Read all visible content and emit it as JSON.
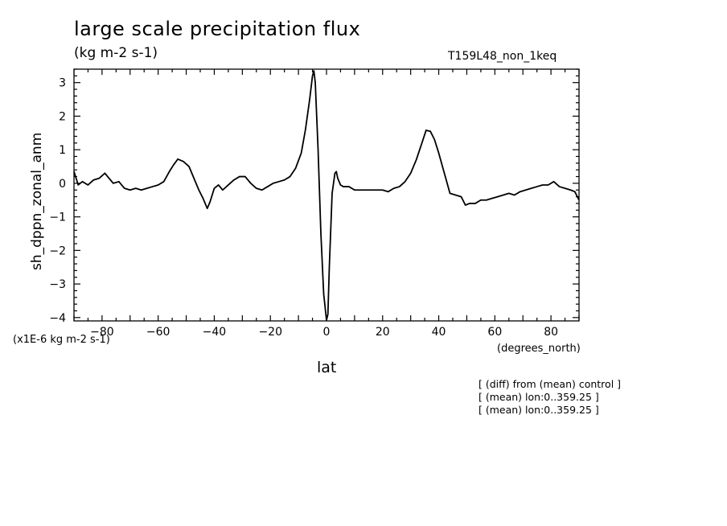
{
  "header": {
    "title": "large scale precipitation flux",
    "units": "(kg m-2 s-1)",
    "experiment": "T159L48_non_1keq"
  },
  "footer": {
    "scale_note": "(x1E-6 kg m-2 s-1)",
    "x_units": "(degrees_north)",
    "notes": [
      "[ (diff) from (mean) control ]",
      "[ (mean) lon:0..359.25 ]",
      "[ (mean) lon:0..359.25 ]"
    ]
  },
  "chart_data": {
    "type": "line",
    "xlabel": "lat",
    "ylabel": "sh_dppn_zonal_anm",
    "xlim": [
      -90,
      90
    ],
    "ylim": [
      -4.1,
      3.4
    ],
    "xticks": [
      -80,
      -60,
      -40,
      -20,
      0,
      20,
      40,
      60,
      80
    ],
    "yticks": [
      -4,
      -3,
      -2,
      -1,
      0,
      1,
      2,
      3
    ],
    "line_color": "#000000",
    "series": [
      {
        "x": [
          -90,
          -88.5,
          -87,
          -85,
          -83,
          -81,
          -79,
          -78,
          -76,
          -74,
          -72,
          -70,
          -68,
          -66,
          -64,
          -62,
          -60,
          -58,
          -56,
          -54.5,
          -53,
          -51,
          -49,
          -47,
          -45.5,
          -44,
          -42.5,
          -41.5,
          -40,
          -38.5,
          -37,
          -35,
          -33,
          -31,
          -29,
          -27,
          -25,
          -23,
          -21,
          -19,
          -17,
          -15,
          -13,
          -11,
          -9,
          -7.5,
          -6,
          -5,
          -4.5,
          -4,
          -3,
          -2,
          -1,
          0,
          0.5,
          1,
          2,
          3,
          3.5,
          4,
          5,
          6,
          8,
          10,
          12,
          14,
          16,
          18,
          20,
          22,
          24,
          26,
          28,
          30,
          32,
          34,
          35.5,
          37,
          38.5,
          40,
          42,
          44,
          46,
          48,
          49.5,
          51,
          53,
          55,
          57,
          59,
          61,
          63,
          65,
          67,
          69,
          71,
          73,
          75,
          77,
          79,
          81,
          83,
          85,
          87,
          88.5,
          90
        ],
        "y": [
          0.35,
          -0.05,
          0.05,
          -0.05,
          0.1,
          0.15,
          0.3,
          0.2,
          0.0,
          0.05,
          -0.15,
          -0.2,
          -0.15,
          -0.2,
          -0.15,
          -0.1,
          -0.05,
          0.05,
          0.35,
          0.55,
          0.72,
          0.65,
          0.5,
          0.1,
          -0.2,
          -0.45,
          -0.75,
          -0.55,
          -0.15,
          -0.05,
          -0.2,
          -0.05,
          0.1,
          0.2,
          0.2,
          0.0,
          -0.15,
          -0.2,
          -0.1,
          0.0,
          0.05,
          0.1,
          0.2,
          0.45,
          0.9,
          1.6,
          2.5,
          3.2,
          3.35,
          3.0,
          1.0,
          -1.5,
          -3.3,
          -4.08,
          -3.9,
          -2.5,
          -0.3,
          0.3,
          0.35,
          0.15,
          -0.05,
          -0.1,
          -0.1,
          -0.2,
          -0.2,
          -0.2,
          -0.2,
          -0.2,
          -0.2,
          -0.25,
          -0.15,
          -0.1,
          0.05,
          0.3,
          0.7,
          1.2,
          1.58,
          1.55,
          1.3,
          0.9,
          0.3,
          -0.3,
          -0.35,
          -0.4,
          -0.65,
          -0.6,
          -0.6,
          -0.5,
          -0.5,
          -0.45,
          -0.4,
          -0.35,
          -0.3,
          -0.35,
          -0.25,
          -0.2,
          -0.15,
          -0.1,
          -0.05,
          -0.05,
          0.05,
          -0.1,
          -0.15,
          -0.2,
          -0.25,
          -0.5
        ]
      }
    ]
  }
}
